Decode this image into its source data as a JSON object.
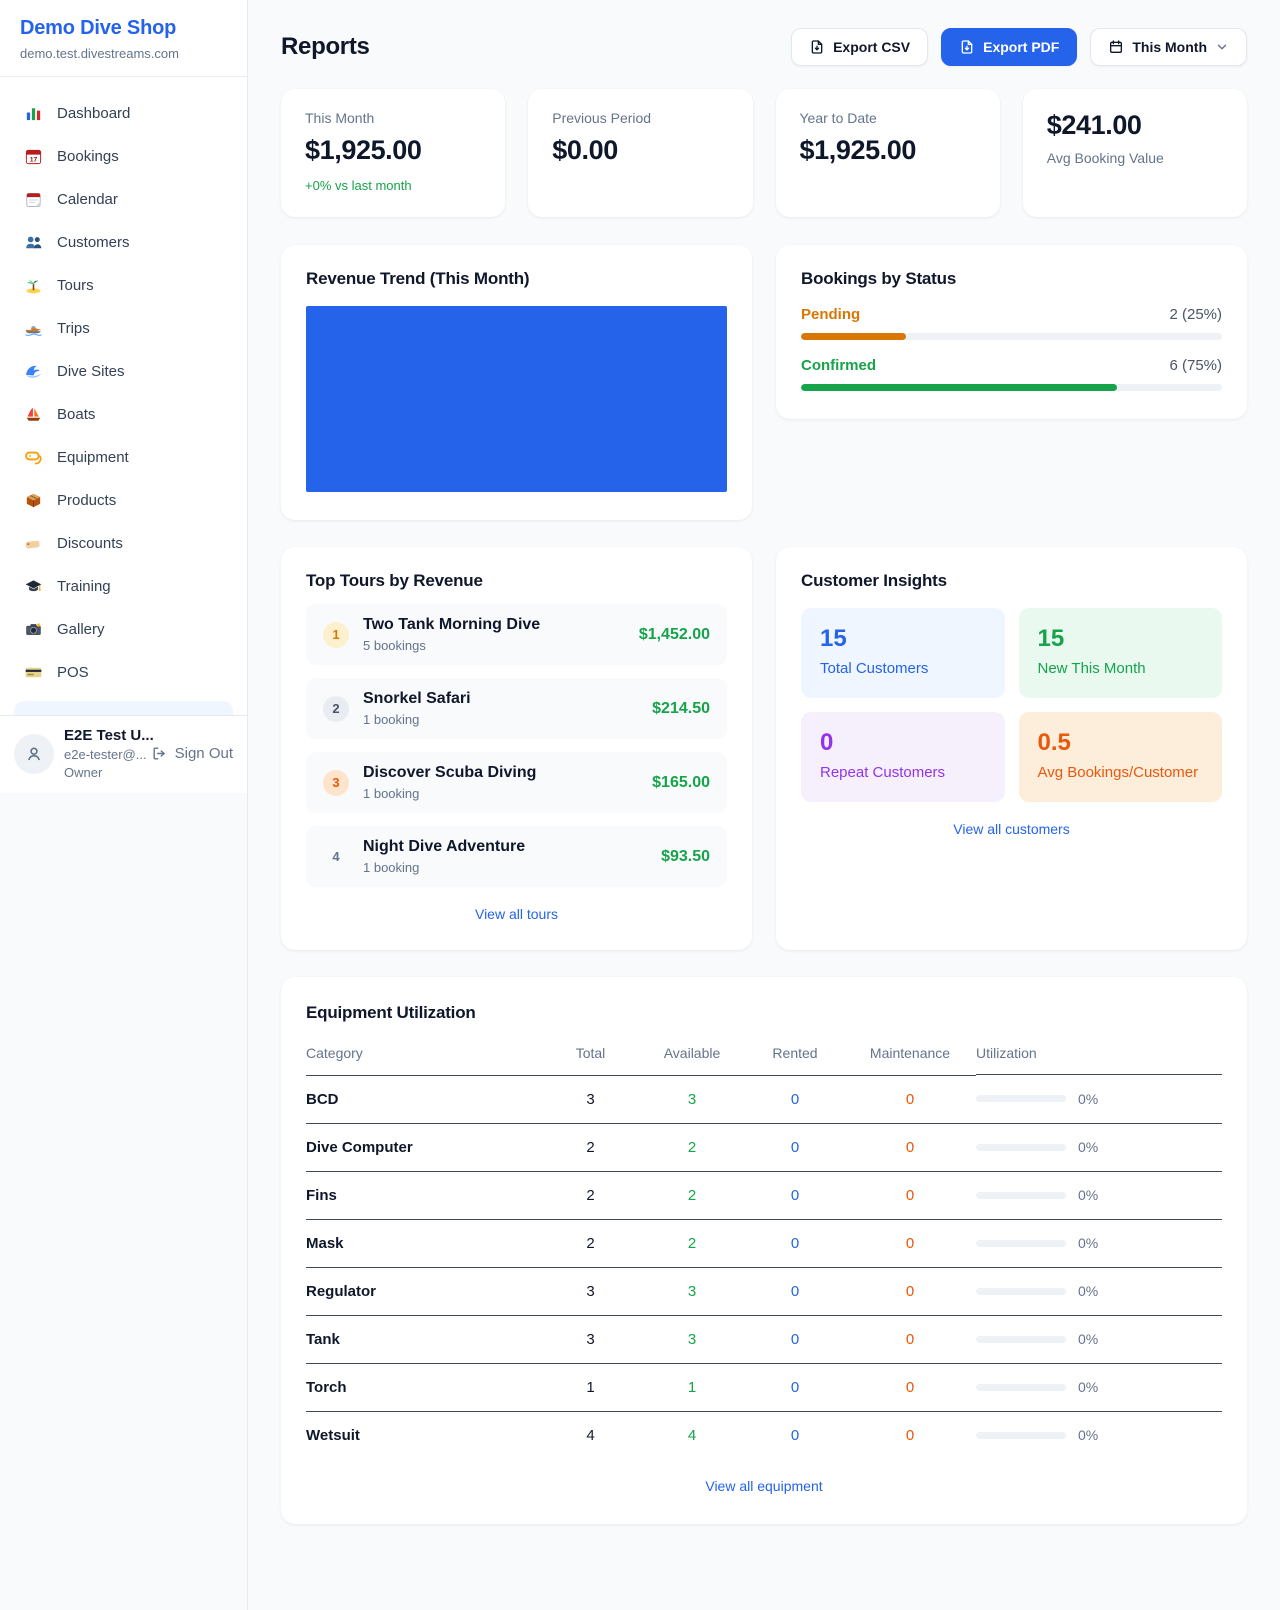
{
  "colors": {
    "primary_blue": "#2563eb",
    "green": "#16a34a",
    "pending_orange": "#d97706",
    "maintenance_orange": "#ea580c",
    "purple": "#9333ea",
    "text_dark": "#0f172a",
    "text_gray": "#64748b",
    "page_bg": "#f8fafc"
  },
  "sidebar": {
    "title": "Demo Dive Shop",
    "domain": "demo.test.divestreams.com",
    "items": [
      {
        "label": "Dashboard",
        "icon": "bar-chart"
      },
      {
        "label": "Bookings",
        "icon": "calendar-date"
      },
      {
        "label": "Calendar",
        "icon": "tear-off-calendar"
      },
      {
        "label": "Customers",
        "icon": "people"
      },
      {
        "label": "Tours",
        "icon": "island"
      },
      {
        "label": "Trips",
        "icon": "speedboat"
      },
      {
        "label": "Dive Sites",
        "icon": "wave"
      },
      {
        "label": "Boats",
        "icon": "sailboat"
      },
      {
        "label": "Equipment",
        "icon": "dive-mask"
      },
      {
        "label": "Products",
        "icon": "package"
      },
      {
        "label": "Discounts",
        "icon": "tag"
      },
      {
        "label": "Training",
        "icon": "graduation-cap"
      },
      {
        "label": "Gallery",
        "icon": "camera"
      },
      {
        "label": "POS",
        "icon": "credit-card"
      }
    ],
    "user": {
      "name": "E2E Test U...",
      "email": "e2e-tester@...",
      "role": "Owner",
      "sign_out_label": "Sign Out"
    }
  },
  "header": {
    "title": "Reports",
    "export_csv_label": "Export CSV",
    "export_pdf_label": "Export PDF",
    "period_selector_label": "This Month"
  },
  "stats": {
    "this_month": {
      "label": "This Month",
      "value": "$1,925.00",
      "delta": "+0% vs last month"
    },
    "previous_period": {
      "label": "Previous Period",
      "value": "$0.00"
    },
    "year_to_date": {
      "label": "Year to Date",
      "value": "$1,925.00"
    },
    "avg_booking": {
      "value": "$241.00",
      "label": "Avg Booking Value"
    }
  },
  "revenue_trend": {
    "title": "Revenue Trend (This Month)"
  },
  "chart_data": [
    {
      "type": "bar",
      "title": "Revenue Trend (This Month)",
      "categories": [
        "This Month"
      ],
      "values": [
        1925
      ],
      "note": "single solid blue bar filling the whole plot area, no axes or labels"
    },
    {
      "type": "bar",
      "title": "Bookings by Status",
      "categories": [
        "Pending",
        "Confirmed"
      ],
      "values": [
        2,
        6
      ],
      "percent": [
        25,
        75
      ]
    }
  ],
  "bookings_by_status": {
    "title": "Bookings by Status",
    "rows": [
      {
        "label": "Pending",
        "value": "2 (25%)",
        "pct": 25
      },
      {
        "label": "Confirmed",
        "value": "6 (75%)",
        "pct": 75
      }
    ]
  },
  "top_tours": {
    "title": "Top Tours by Revenue",
    "rows": [
      {
        "rank": "1",
        "name": "Two Tank Morning Dive",
        "bookings": "5 bookings",
        "amount": "$1,452.00"
      },
      {
        "rank": "2",
        "name": "Snorkel Safari",
        "bookings": "1 booking",
        "amount": "$214.50"
      },
      {
        "rank": "3",
        "name": "Discover Scuba Diving",
        "bookings": "1 booking",
        "amount": "$165.00"
      },
      {
        "rank": "4",
        "name": "Night Dive Adventure",
        "bookings": "1 booking",
        "amount": "$93.50"
      }
    ],
    "link_label": "View all tours"
  },
  "customer_insights": {
    "title": "Customer Insights",
    "tiles": [
      {
        "value": "15",
        "label": "Total Customers",
        "color": "#2563eb",
        "bg": "#eff6ff"
      },
      {
        "value": "15",
        "label": "New This Month",
        "color": "#16a34a",
        "bg": "#e9f9f0"
      },
      {
        "value": "0",
        "label": "Repeat Customers",
        "color": "#9333ea",
        "bg": "#f6f0fd"
      },
      {
        "value": "0.5",
        "label": "Avg Bookings/Customer",
        "color": "#ea580c",
        "bg": "#fdeedc"
      }
    ],
    "link_label": "View all customers"
  },
  "equipment": {
    "title": "Equipment Utilization",
    "columns": [
      "Category",
      "Total",
      "Available",
      "Rented",
      "Maintenance",
      "Utilization"
    ],
    "rows": [
      {
        "category": "BCD",
        "total": "3",
        "available": "3",
        "rented": "0",
        "maintenance": "0",
        "utilization": "0%",
        "pct": 0
      },
      {
        "category": "Dive Computer",
        "total": "2",
        "available": "2",
        "rented": "0",
        "maintenance": "0",
        "utilization": "0%",
        "pct": 0
      },
      {
        "category": "Fins",
        "total": "2",
        "available": "2",
        "rented": "0",
        "maintenance": "0",
        "utilization": "0%",
        "pct": 0
      },
      {
        "category": "Mask",
        "total": "2",
        "available": "2",
        "rented": "0",
        "maintenance": "0",
        "utilization": "0%",
        "pct": 0
      },
      {
        "category": "Regulator",
        "total": "3",
        "available": "3",
        "rented": "0",
        "maintenance": "0",
        "utilization": "0%",
        "pct": 0
      },
      {
        "category": "Tank",
        "total": "3",
        "available": "3",
        "rented": "0",
        "maintenance": "0",
        "utilization": "0%",
        "pct": 0
      },
      {
        "category": "Torch",
        "total": "1",
        "available": "1",
        "rented": "0",
        "maintenance": "0",
        "utilization": "0%",
        "pct": 0
      },
      {
        "category": "Wetsuit",
        "total": "4",
        "available": "4",
        "rented": "0",
        "maintenance": "0",
        "utilization": "0%",
        "pct": 0
      }
    ],
    "link_label": "View all equipment"
  }
}
